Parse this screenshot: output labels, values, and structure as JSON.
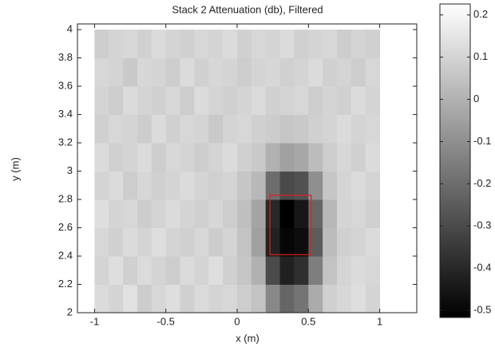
{
  "chart_data": {
    "type": "heatmap",
    "title": "Stack 2 Attenuation (db), Filtered",
    "x_label": "x (m)",
    "y_label": "y  (m)",
    "colormap": "gray",
    "x": [
      -0.95,
      -0.85,
      -0.75,
      -0.65,
      -0.55,
      -0.45,
      -0.35,
      -0.25,
      -0.15,
      -0.05,
      0.05,
      0.15,
      0.25,
      0.35,
      0.45,
      0.55,
      0.65,
      0.75,
      0.85,
      0.95
    ],
    "y": [
      2.1,
      2.3,
      2.5,
      2.7,
      2.9,
      3.1,
      3.3,
      3.5,
      3.7,
      3.9
    ],
    "z": [
      [
        0.12,
        0.1,
        0.14,
        0.08,
        0.11,
        0.13,
        0.09,
        0.12,
        0.1,
        0.11,
        0.08,
        0.05,
        -0.12,
        -0.22,
        -0.18,
        -0.02,
        0.09,
        0.11,
        0.13,
        0.1
      ],
      [
        0.1,
        0.13,
        0.09,
        0.12,
        0.1,
        0.08,
        0.12,
        0.1,
        0.13,
        0.09,
        0.06,
        0.0,
        -0.3,
        -0.42,
        -0.38,
        -0.15,
        0.05,
        0.1,
        0.12,
        0.11
      ],
      [
        0.11,
        0.09,
        0.12,
        0.1,
        0.13,
        0.1,
        0.09,
        0.11,
        0.08,
        0.1,
        0.05,
        -0.05,
        -0.42,
        -0.5,
        -0.48,
        -0.25,
        0.03,
        0.09,
        0.1,
        0.12
      ],
      [
        0.13,
        0.1,
        0.11,
        0.08,
        0.1,
        0.12,
        0.1,
        0.09,
        0.11,
        0.08,
        0.04,
        -0.04,
        -0.4,
        -0.52,
        -0.45,
        -0.22,
        0.02,
        0.1,
        0.11,
        0.09
      ],
      [
        0.1,
        0.12,
        0.08,
        0.11,
        0.09,
        0.1,
        0.12,
        0.1,
        0.09,
        0.1,
        0.06,
        0.02,
        -0.2,
        -0.3,
        -0.28,
        -0.1,
        0.06,
        0.1,
        0.12,
        0.1
      ],
      [
        0.12,
        0.09,
        0.1,
        0.12,
        0.08,
        0.11,
        0.1,
        0.08,
        0.1,
        0.12,
        0.09,
        0.07,
        0.0,
        -0.05,
        -0.03,
        0.03,
        0.08,
        0.11,
        0.09,
        0.12
      ],
      [
        0.09,
        0.11,
        0.1,
        0.08,
        0.12,
        0.09,
        0.11,
        0.1,
        0.07,
        0.1,
        0.11,
        0.09,
        0.08,
        0.06,
        0.07,
        0.09,
        0.1,
        0.12,
        0.1,
        0.11
      ],
      [
        0.1,
        0.08,
        0.12,
        0.1,
        0.09,
        0.11,
        0.08,
        0.12,
        0.1,
        0.09,
        0.1,
        0.12,
        0.09,
        0.1,
        0.11,
        0.08,
        0.1,
        0.09,
        0.12,
        0.1
      ],
      [
        0.11,
        0.1,
        0.07,
        0.11,
        0.1,
        0.08,
        0.12,
        0.09,
        0.11,
        0.1,
        0.08,
        0.1,
        0.11,
        0.09,
        0.1,
        0.12,
        0.09,
        0.1,
        0.08,
        0.11
      ],
      [
        0.08,
        0.1,
        0.11,
        0.09,
        0.12,
        0.1,
        0.09,
        0.11,
        0.1,
        0.12,
        0.09,
        0.11,
        0.1,
        0.12,
        0.09,
        0.1,
        0.11,
        0.08,
        0.1,
        0.09
      ]
    ],
    "xlim": [
      -1.12,
      1.26
    ],
    "ylim": [
      2,
      4.04
    ],
    "xticks": [
      -1,
      -0.5,
      0,
      0.5,
      1
    ],
    "yticks": [
      2,
      2.2,
      2.4,
      2.6,
      2.8,
      3,
      3.2,
      3.4,
      3.6,
      3.8,
      4
    ],
    "clim": [
      -0.517,
      0.226
    ],
    "cticks": [
      -0.5,
      -0.4,
      -0.3,
      -0.2,
      -0.1,
      0,
      0.1,
      0.2
    ],
    "box": {
      "x": [
        0.23,
        0.52
      ],
      "y": [
        2.41,
        2.83
      ],
      "color": "#e02020"
    }
  }
}
